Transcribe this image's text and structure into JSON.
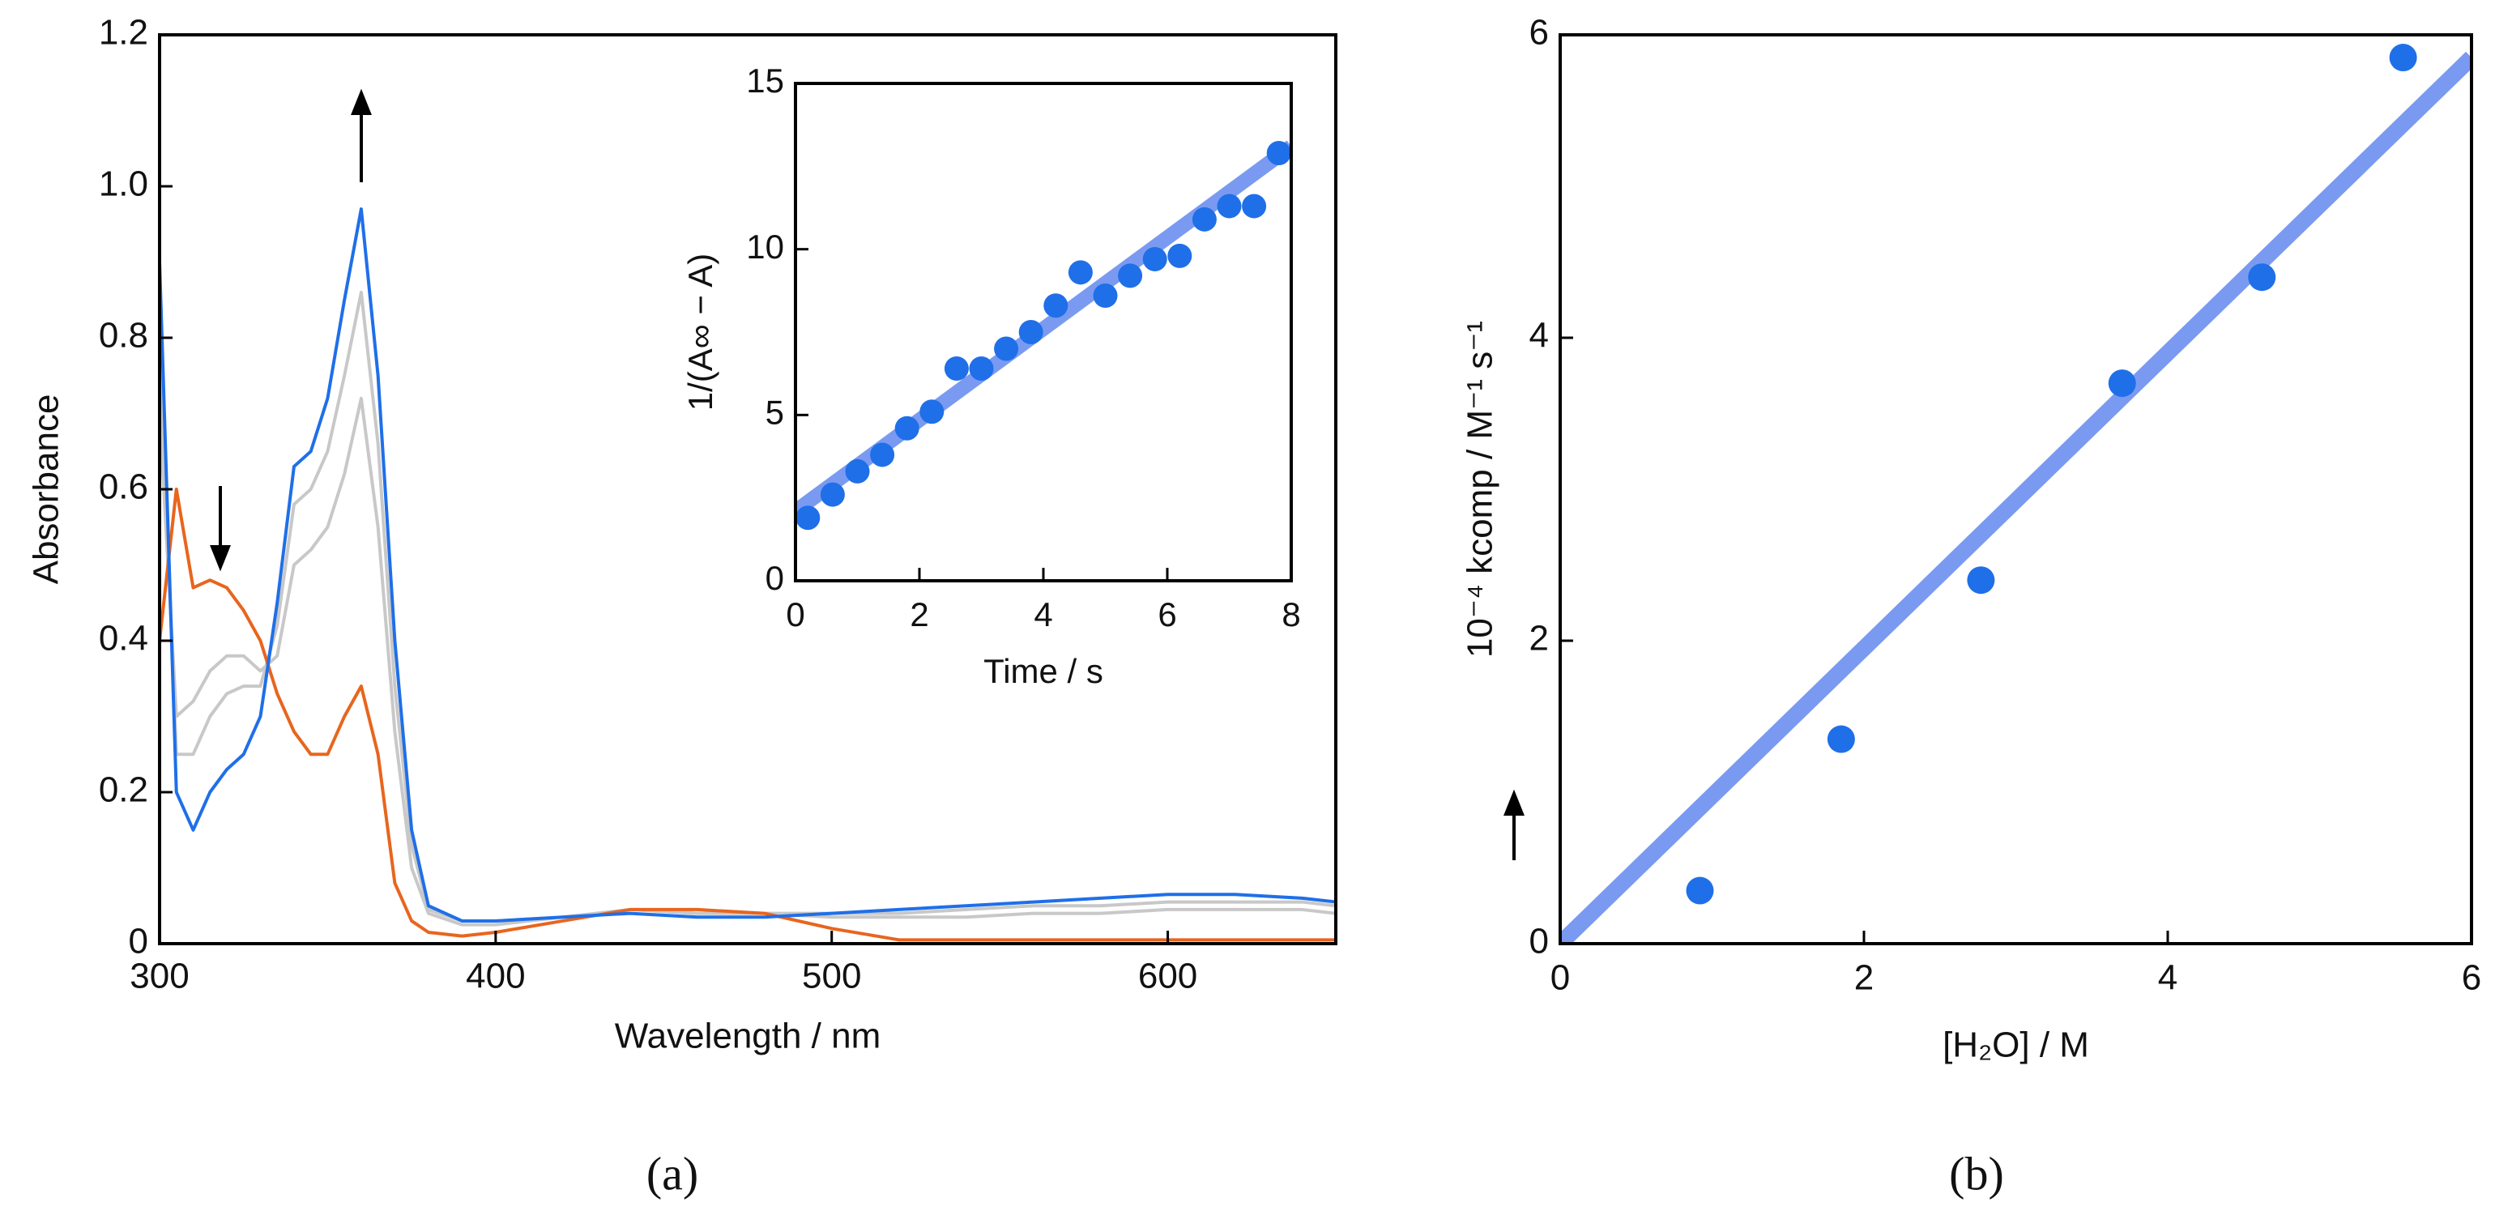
{
  "chart_data": [
    {
      "type": "line",
      "panel": "(a)",
      "x_label": "Wavelength / nm",
      "y_label": "Absorbance",
      "x": [
        300,
        305,
        310,
        315,
        320,
        325,
        330,
        335,
        340,
        345,
        350,
        355,
        360,
        365,
        370,
        375,
        380,
        390,
        400,
        420,
        440,
        460,
        480,
        500,
        520,
        540,
        560,
        580,
        600,
        620,
        640,
        650
      ],
      "series": [
        {
          "color": "#c8c8c8",
          "values": [
            0.7,
            0.3,
            0.32,
            0.36,
            0.38,
            0.38,
            0.36,
            0.38,
            0.5,
            0.52,
            0.55,
            0.62,
            0.72,
            0.55,
            0.28,
            0.1,
            0.04,
            0.025,
            0.025,
            0.035,
            0.045,
            0.04,
            0.04,
            0.035,
            0.035,
            0.035,
            0.04,
            0.04,
            0.045,
            0.045,
            0.045,
            0.04
          ]
        },
        {
          "color": "#c8c8c8",
          "values": [
            0.8,
            0.25,
            0.25,
            0.3,
            0.33,
            0.34,
            0.34,
            0.42,
            0.58,
            0.6,
            0.65,
            0.75,
            0.86,
            0.66,
            0.34,
            0.13,
            0.045,
            0.03,
            0.03,
            0.035,
            0.045,
            0.04,
            0.04,
            0.04,
            0.04,
            0.045,
            0.05,
            0.05,
            0.055,
            0.055,
            0.055,
            0.05
          ]
        },
        {
          "color": "#e8651e",
          "values": [
            0.4,
            0.6,
            0.47,
            0.48,
            0.47,
            0.44,
            0.4,
            0.33,
            0.28,
            0.25,
            0.25,
            0.3,
            0.34,
            0.25,
            0.08,
            0.03,
            0.015,
            0.01,
            0.015,
            0.03,
            0.045,
            0.045,
            0.04,
            0.02,
            0.005,
            0.005,
            0.005,
            0.005,
            0.005,
            0.005,
            0.005,
            0.005
          ]
        },
        {
          "color": "#1f6fe8",
          "values": [
            0.9,
            0.2,
            0.15,
            0.2,
            0.23,
            0.25,
            0.3,
            0.45,
            0.63,
            0.65,
            0.72,
            0.85,
            0.97,
            0.75,
            0.4,
            0.15,
            0.05,
            0.03,
            0.03,
            0.035,
            0.04,
            0.035,
            0.035,
            0.04,
            0.045,
            0.05,
            0.055,
            0.06,
            0.065,
            0.065,
            0.06,
            0.055
          ]
        }
      ],
      "xlim": [
        300,
        650
      ],
      "xticks": [
        300,
        400,
        500,
        600
      ],
      "ylim": [
        0,
        1.2
      ],
      "yticks": [
        0,
        0.2,
        0.4,
        0.6,
        0.8,
        {
          "value": 1,
          "label": "1.0"
        },
        1.2
      ]
    },
    {
      "type": "scatter",
      "x_label": "Time / s",
      "y_label": "1/(A∞ − A)",
      "color": "#1f6fe8",
      "x": [
        0.2,
        0.6,
        1.0,
        1.4,
        1.8,
        2.2,
        2.6,
        3.0,
        3.4,
        3.8,
        4.2,
        4.6,
        5.0,
        5.4,
        5.8,
        6.2,
        6.6,
        7.0,
        7.4,
        7.8
      ],
      "values": [
        1.9,
        2.6,
        3.3,
        3.8,
        4.6,
        5.1,
        6.4,
        6.4,
        7.0,
        7.5,
        8.3,
        9.3,
        8.6,
        9.2,
        9.7,
        9.8,
        10.9,
        11.3,
        11.3,
        12.9
      ],
      "fit": {
        "color": "#6b8ff0",
        "x": [
          0,
          8
        ],
        "values": [
          2.1,
          13.1
        ]
      },
      "xlim": [
        0,
        8
      ],
      "xticks": [
        0,
        2,
        4,
        6,
        8
      ],
      "ylim": [
        0,
        15
      ],
      "yticks": [
        0,
        5,
        10,
        15
      ]
    },
    {
      "type": "scatter",
      "panel": "(b)",
      "x_label": "[H₂O] / M",
      "y_label": "10⁻⁴ kcomp / M⁻¹ s⁻¹",
      "color": "#1f6fe8",
      "x": [
        0.92,
        1.85,
        2.77,
        3.7,
        4.62,
        5.55
      ],
      "values": [
        0.35,
        1.35,
        2.4,
        3.7,
        4.4,
        5.85
      ],
      "fit": {
        "color": "#6b8ff0",
        "x": [
          0,
          6
        ],
        "values": [
          0,
          5.85
        ]
      },
      "xlim": [
        0,
        6
      ],
      "xticks": [
        0,
        2,
        4,
        6
      ],
      "ylim": [
        0,
        6
      ],
      "yticks": [
        0,
        2,
        4,
        6
      ]
    }
  ]
}
